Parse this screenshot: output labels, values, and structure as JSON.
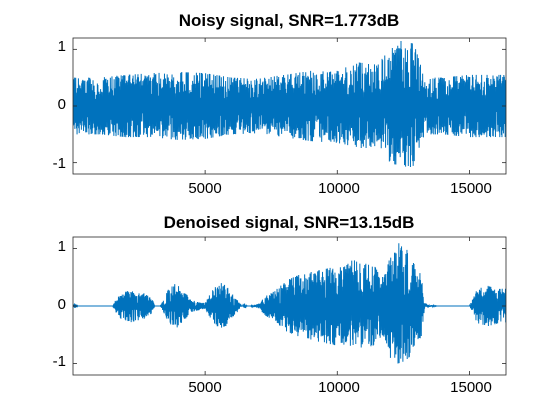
{
  "colors": {
    "signal": "#0072BD",
    "axis": "#262626",
    "background": "#ffffff"
  },
  "chart_data": [
    {
      "type": "line",
      "title": "Noisy signal, SNR=1.773dB",
      "xlabel": "",
      "ylabel": "",
      "xlim": [
        1,
        16384
      ],
      "ylim": [
        -1.2,
        1.2
      ],
      "xticks": [
        5000,
        10000,
        15000
      ],
      "xtick_labels": [
        "5000",
        "10000",
        "15000"
      ],
      "yticks": [
        -1,
        0,
        1
      ],
      "ytick_labels": [
        "-1",
        "0",
        "1"
      ],
      "grid": false,
      "series": [
        {
          "color": "#0072BD",
          "envelope_note_x": [
            1,
            1000,
            2000,
            3000,
            4000,
            5000,
            6000,
            7000,
            8000,
            9000,
            10000,
            10500,
            11000,
            11500,
            11900,
            12400,
            12900,
            13300,
            14000,
            15000,
            16384
          ],
          "upper": [
            0.5,
            0.5,
            0.55,
            0.58,
            0.6,
            0.58,
            0.5,
            0.48,
            0.55,
            0.62,
            0.65,
            0.7,
            0.8,
            0.72,
            0.95,
            1.15,
            1.1,
            0.5,
            0.5,
            0.55,
            0.55
          ],
          "lower": [
            -0.5,
            -0.5,
            -0.55,
            -0.55,
            -0.6,
            -0.58,
            -0.5,
            -0.48,
            -0.55,
            -0.62,
            -0.65,
            -0.7,
            -0.75,
            -0.7,
            -0.95,
            -1.15,
            -1.05,
            -0.5,
            -0.5,
            -0.55,
            -0.55
          ]
        }
      ]
    },
    {
      "type": "line",
      "title": "Denoised signal, SNR=13.15dB",
      "xlabel": "",
      "ylabel": "",
      "xlim": [
        1,
        16384
      ],
      "ylim": [
        -1.2,
        1.2
      ],
      "xticks": [
        5000,
        10000,
        15000
      ],
      "xtick_labels": [
        "5000",
        "10000",
        "15000"
      ],
      "yticks": [
        -1,
        0,
        1
      ],
      "ytick_labels": [
        "-1",
        "0",
        "1"
      ],
      "grid": false,
      "series": [
        {
          "color": "#0072BD",
          "x": [
            1,
            60,
            120,
            200,
            1500,
            1600,
            1800,
            2200,
            2700,
            3000,
            3100,
            3300,
            3400,
            3600,
            3900,
            4200,
            4500,
            5000,
            5300,
            5600,
            5800,
            6400,
            6500,
            6600,
            6700,
            7100,
            7200,
            7600,
            8100,
            8600,
            9100,
            9600,
            10100,
            10600,
            11000,
            11400,
            11700,
            11800,
            12000,
            12300,
            12600,
            12900,
            13200,
            13300,
            13500,
            13800,
            15000,
            15300,
            15700,
            16100,
            16384
          ],
          "upper": [
            0,
            0.05,
            0.02,
            0,
            0,
            0.1,
            0.22,
            0.28,
            0.22,
            0.12,
            0,
            0,
            0.08,
            0.28,
            0.4,
            0.25,
            0.1,
            0.05,
            0.3,
            0.4,
            0.35,
            0,
            0.05,
            0,
            0,
            0.05,
            0.15,
            0.25,
            0.45,
            0.55,
            0.6,
            0.65,
            0.7,
            0.8,
            0.75,
            0.7,
            0.5,
            0.55,
            0.9,
            1.1,
            1.0,
            0.8,
            0.5,
            0.05,
            0.02,
            0,
            0,
            0.3,
            0.35,
            0.3,
            0.3
          ],
          "lower": [
            0,
            -0.05,
            -0.02,
            0,
            0,
            -0.1,
            -0.22,
            -0.28,
            -0.22,
            -0.12,
            0,
            0,
            -0.08,
            -0.28,
            -0.4,
            -0.25,
            -0.1,
            -0.05,
            -0.3,
            -0.4,
            -0.35,
            0,
            -0.05,
            0,
            0,
            -0.05,
            -0.15,
            -0.25,
            -0.45,
            -0.55,
            -0.6,
            -0.65,
            -0.7,
            -0.75,
            -0.75,
            -0.7,
            -0.5,
            -0.55,
            -0.9,
            -1.0,
            -0.95,
            -0.8,
            -0.5,
            -0.05,
            -0.02,
            0,
            0,
            -0.3,
            -0.35,
            -0.3,
            -0.3
          ]
        }
      ]
    }
  ]
}
